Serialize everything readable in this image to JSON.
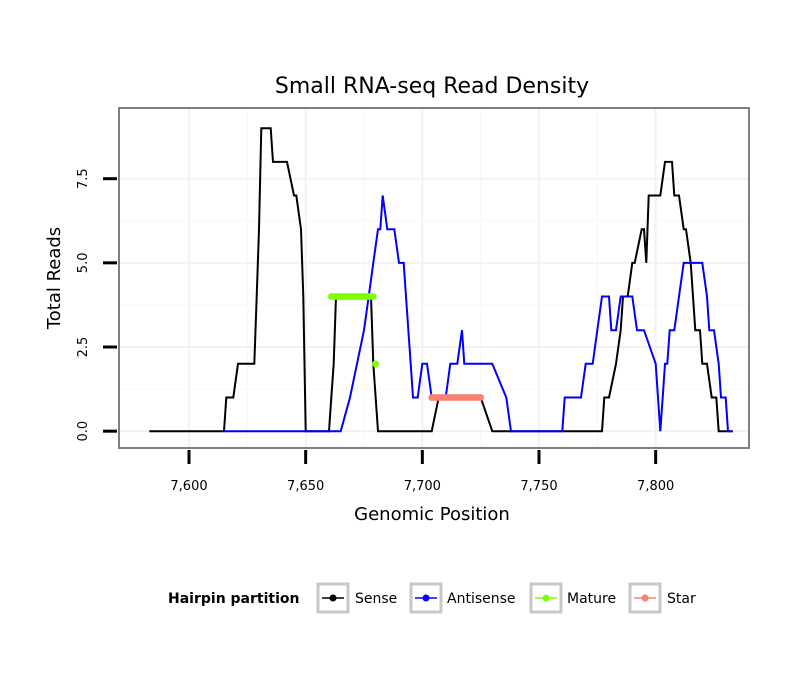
{
  "chart_data": {
    "type": "line",
    "title": "Small RNA-seq Read Density",
    "xlabel": "Genomic Position",
    "ylabel": "Total Reads",
    "xlim": [
      7570,
      7840
    ],
    "ylim": [
      -0.5,
      9.6
    ],
    "x_ticks": [
      7600,
      7650,
      7700,
      7750,
      7800
    ],
    "x_tick_labels": [
      "7,600",
      "7,650",
      "7,700",
      "7,750",
      "7,800"
    ],
    "y_ticks": [
      0,
      2.5,
      5,
      7.5
    ],
    "y_tick_labels": [
      "0.0",
      "2.5",
      "5.0",
      "7.5"
    ],
    "grid": true,
    "legend": {
      "title": "Hairpin partition",
      "position": "bottom",
      "entries": [
        {
          "name": "Sense",
          "color": "#000000"
        },
        {
          "name": "Antisense",
          "color": "#0000ff"
        },
        {
          "name": "Mature",
          "color": "#7fff00"
        },
        {
          "name": "Star",
          "color": "#fa8072"
        }
      ]
    },
    "series": [
      {
        "name": "Sense",
        "kind": "line",
        "color": "#000000",
        "x": [
          7583,
          7615,
          7616,
          7618,
          7619,
          7621,
          7624,
          7628,
          7629,
          7630,
          7631,
          7632,
          7634,
          7635,
          7636,
          7638,
          7640,
          7642,
          7645,
          7646,
          7648,
          7649,
          7650,
          7651,
          7653,
          7660,
          7661,
          7662,
          7663,
          7665,
          7668,
          7671,
          7674,
          7676,
          7678,
          7679,
          7681,
          7690,
          7700,
          7703,
          7704,
          7707,
          7710,
          7715,
          7720,
          7725,
          7730,
          7740,
          7760,
          7775,
          7776,
          7777,
          7778,
          7780,
          7783,
          7785,
          7786,
          7788,
          7790,
          7791,
          7794,
          7795,
          7796,
          7797,
          7799,
          7800,
          7802,
          7804,
          7805,
          7806,
          7807,
          7808,
          7810,
          7812,
          7813,
          7815,
          7817,
          7818,
          7819,
          7820,
          7821,
          7822,
          7824,
          7825,
          7826,
          7827,
          7828,
          7830,
          7831,
          7833
        ],
        "y": [
          0,
          0,
          1,
          1,
          1,
          2,
          2,
          2,
          4,
          6,
          9,
          9,
          9,
          9,
          8,
          8,
          8,
          8,
          7,
          7,
          6,
          4,
          0,
          0,
          0,
          0,
          1,
          2,
          4,
          4,
          4,
          4,
          4,
          4,
          4,
          2,
          0,
          0,
          0,
          0,
          0,
          1,
          1,
          1,
          1,
          1,
          0,
          0,
          0,
          0,
          0,
          0,
          1,
          1,
          2,
          3,
          4,
          4,
          5,
          5,
          6,
          6,
          5,
          7,
          7,
          7,
          7,
          8,
          8,
          8,
          8,
          7,
          7,
          6,
          6,
          5,
          3,
          3,
          3,
          2,
          2,
          2,
          1,
          1,
          1,
          0,
          0,
          0,
          0,
          0
        ]
      },
      {
        "name": "Antisense",
        "kind": "line",
        "color": "#0000ff",
        "x": [
          7615,
          7660,
          7663,
          7665,
          7669,
          7672,
          7675,
          7677,
          7679,
          7681,
          7682,
          7683,
          7685,
          7688,
          7690,
          7692,
          7693,
          7695,
          7696,
          7698,
          7700,
          7702,
          7704,
          7705,
          7707,
          7710,
          7712,
          7715,
          7717,
          7718,
          7719,
          7720,
          7722,
          7725,
          7730,
          7736,
          7738,
          7740,
          7750,
          7760,
          7761,
          7765,
          7768,
          7770,
          7773,
          7775,
          7777,
          7780,
          7781,
          7783,
          7785,
          7790,
          7792,
          7795,
          7800,
          7801,
          7802,
          7803,
          7804,
          7805,
          7806,
          7808,
          7810,
          7812,
          7815,
          7818,
          7820,
          7822,
          7823,
          7825,
          7827,
          7828,
          7830,
          7831,
          7833
        ],
        "y": [
          0,
          0,
          0,
          0,
          1,
          2,
          3,
          4,
          5,
          6,
          6,
          7,
          6,
          6,
          5,
          5,
          4,
          2,
          1,
          1,
          2,
          2,
          1,
          1,
          1,
          1,
          2,
          2,
          3,
          2,
          2,
          2,
          2,
          2,
          2,
          1,
          0,
          0,
          0,
          0,
          1,
          1,
          1,
          2,
          2,
          3,
          4,
          4,
          3,
          3,
          4,
          4,
          3,
          3,
          2,
          1,
          0,
          1,
          2,
          2,
          3,
          3,
          4,
          5,
          5,
          5,
          5,
          4,
          3,
          3,
          2,
          1,
          1,
          0,
          0
        ]
      },
      {
        "name": "Mature",
        "kind": "points",
        "color": "#7fff00",
        "x": [
          7661,
          7662,
          7663,
          7664,
          7665,
          7666,
          7667,
          7668,
          7669,
          7670,
          7671,
          7672,
          7673,
          7674,
          7675,
          7676,
          7677,
          7678,
          7679,
          7680
        ],
        "y": [
          4,
          4,
          4,
          4,
          4,
          4,
          4,
          4,
          4,
          4,
          4,
          4,
          4,
          4,
          4,
          4,
          4,
          4,
          4,
          2
        ]
      },
      {
        "name": "Star",
        "kind": "points",
        "color": "#fa8072",
        "x": [
          7704,
          7705,
          7706,
          7707,
          7708,
          7709,
          7710,
          7711,
          7712,
          7713,
          7714,
          7715,
          7716,
          7717,
          7718,
          7719,
          7720,
          7721,
          7722,
          7723,
          7724,
          7725
        ],
        "y": [
          1,
          1,
          1,
          1,
          1,
          1,
          1,
          1,
          1,
          1,
          1,
          1,
          1,
          1,
          1,
          1,
          1,
          1,
          1,
          1,
          1,
          1
        ]
      }
    ]
  }
}
